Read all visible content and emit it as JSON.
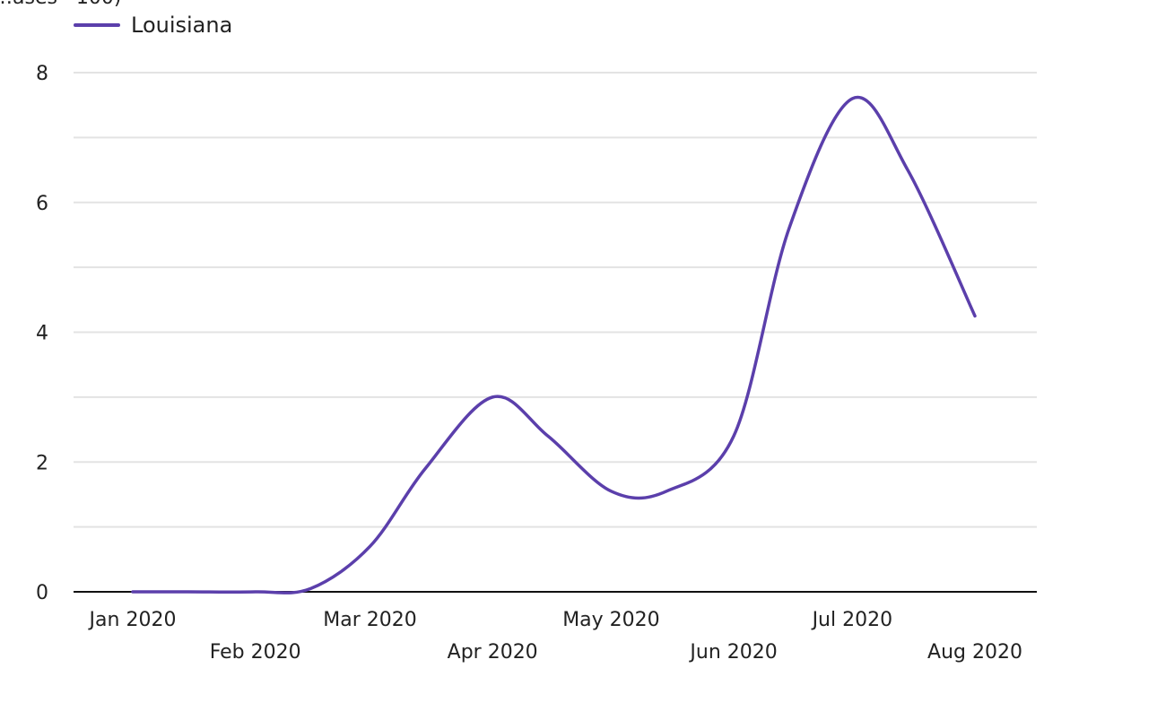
{
  "legend": {
    "series_name": "Louisiana",
    "color": "#5b3fab"
  },
  "chart_data": {
    "type": "line",
    "title": "",
    "ylabel_partial": "…ases · 100)",
    "xlabel": "",
    "ylim": [
      0,
      8
    ],
    "grid": true,
    "legend_placement": "top-left",
    "y_ticks": [
      0,
      2,
      4,
      6,
      8
    ],
    "x_ticks": [
      {
        "date": "2020-01-01",
        "label": "Jan 2020"
      },
      {
        "date": "2020-02-01",
        "label": "Feb 2020"
      },
      {
        "date": "2020-03-01",
        "label": "Mar 2020"
      },
      {
        "date": "2020-04-01",
        "label": "Apr 2020"
      },
      {
        "date": "2020-05-01",
        "label": "May 2020"
      },
      {
        "date": "2020-06-01",
        "label": "Jun 2020"
      },
      {
        "date": "2020-07-01",
        "label": "Jul 2020"
      },
      {
        "date": "2020-08-01",
        "label": "Aug 2020"
      }
    ],
    "series": [
      {
        "name": "Louisiana",
        "color": "#5b3fab",
        "points": [
          {
            "date": "2020-01-01",
            "value": 0
          },
          {
            "date": "2020-01-15",
            "value": 0
          },
          {
            "date": "2020-02-01",
            "value": 0
          },
          {
            "date": "2020-02-15",
            "value": 0.05
          },
          {
            "date": "2020-03-01",
            "value": 0.7
          },
          {
            "date": "2020-03-15",
            "value": 1.9
          },
          {
            "date": "2020-04-01",
            "value": 3.0
          },
          {
            "date": "2020-04-15",
            "value": 2.4
          },
          {
            "date": "2020-05-01",
            "value": 1.55
          },
          {
            "date": "2020-05-15",
            "value": 1.55
          },
          {
            "date": "2020-06-01",
            "value": 2.4
          },
          {
            "date": "2020-06-15",
            "value": 5.6
          },
          {
            "date": "2020-07-01",
            "value": 7.6
          },
          {
            "date": "2020-07-15",
            "value": 6.5
          },
          {
            "date": "2020-08-01",
            "value": 4.25
          }
        ]
      }
    ]
  }
}
